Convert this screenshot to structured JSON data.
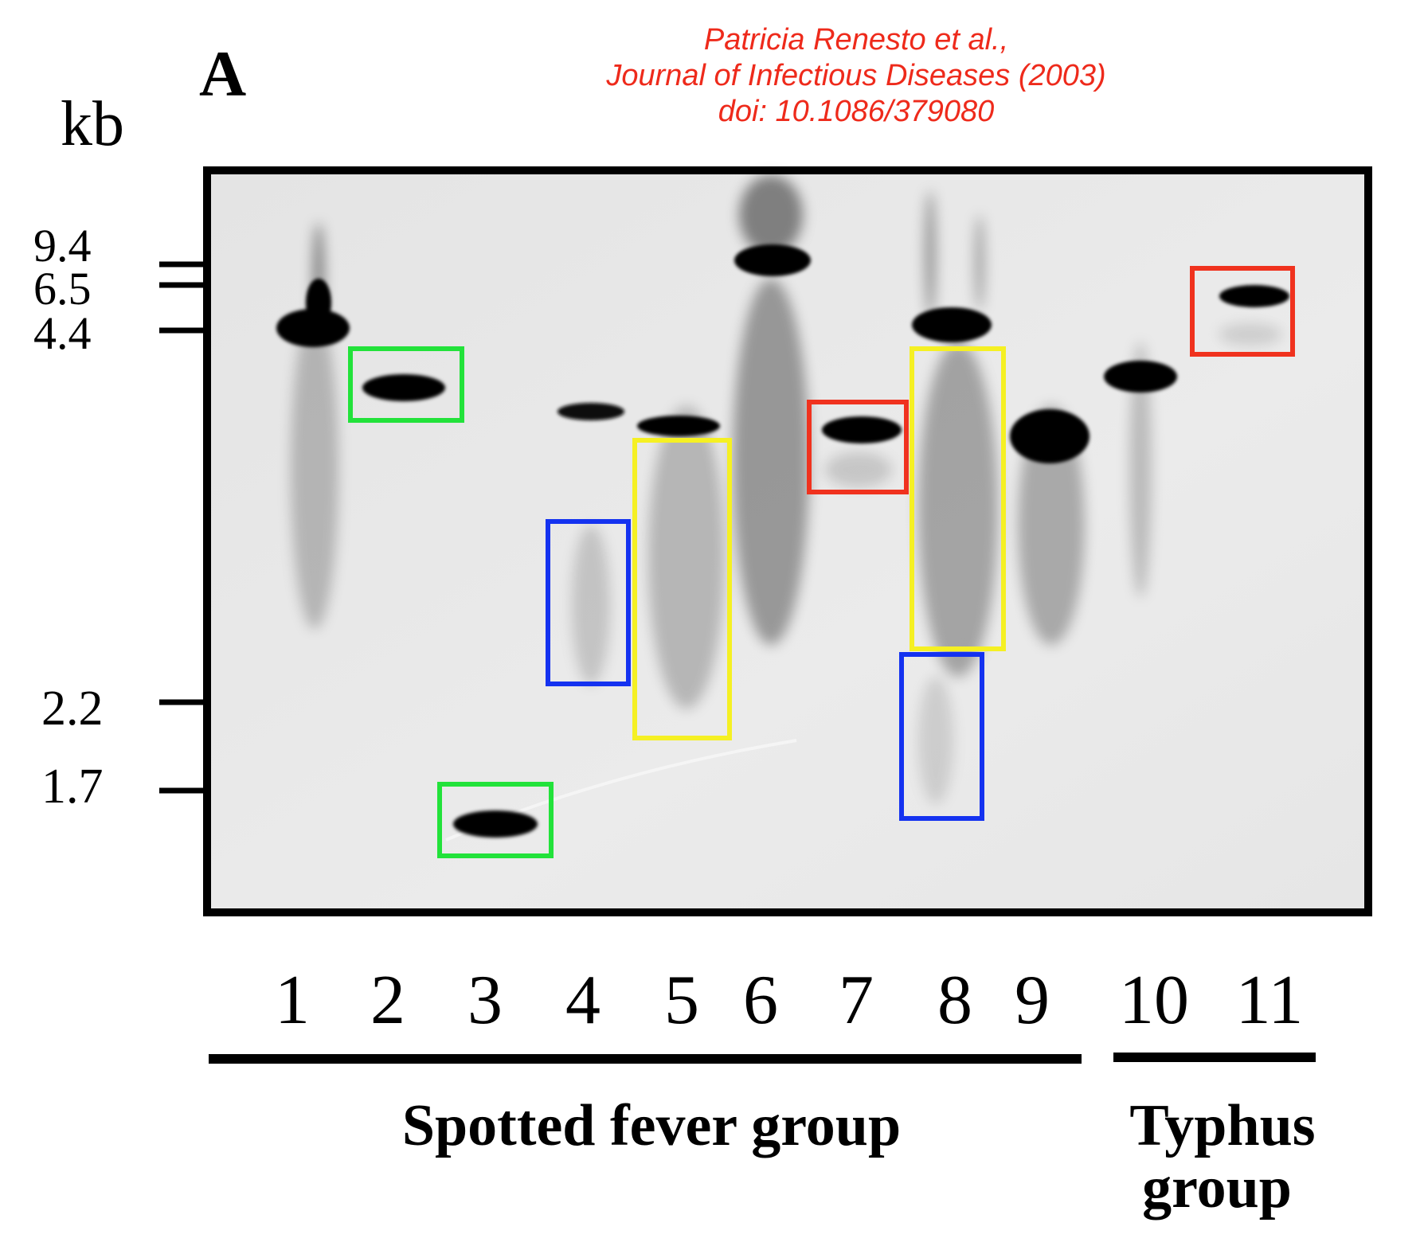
{
  "citation": {
    "lines": [
      "Patricia Renesto et al.,",
      "Journal of Infectious Diseases (2003)",
      "doi: 10.1086/379080"
    ],
    "color": "#ee2a1b"
  },
  "panel_label": "A",
  "size_axis": {
    "unit": "kb",
    "markers": [
      "9.4",
      "6.5",
      "4.4",
      "2.2",
      "1.7"
    ]
  },
  "lanes": [
    "1",
    "2",
    "3",
    "4",
    "5",
    "6",
    "7",
    "8",
    "9",
    "10",
    "11"
  ],
  "groups": [
    {
      "label_lines": [
        "Spotted fever group"
      ]
    },
    {
      "label_lines": [
        "Typhus",
        "group"
      ]
    }
  ],
  "highlight_colors": {
    "green": "#22e23a",
    "red": "#f0321e",
    "blue": "#1432f0",
    "yellow": "#f5f023"
  }
}
